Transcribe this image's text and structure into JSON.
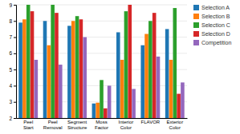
{
  "chart_data": {
    "type": "bar",
    "categories": [
      "Peel\nStart",
      "Peel\nRemoval",
      "Segment\nStructure",
      "Moss\nFactor",
      "Interior\nColor",
      "FLAVOR",
      "Exterior\nColor"
    ],
    "series": [
      {
        "name": "Selection A",
        "values": [
          7.9,
          8.0,
          7.7,
          2.9,
          7.3,
          6.5,
          7.5
        ]
      },
      {
        "name": "Selection B",
        "values": [
          8.1,
          6.5,
          8.0,
          2.95,
          5.6,
          7.2,
          5.6
        ]
      },
      {
        "name": "Selection C",
        "values": [
          9.0,
          9.0,
          8.3,
          4.35,
          8.6,
          8.0,
          8.8
        ]
      },
      {
        "name": "Selection D",
        "values": [
          8.6,
          8.5,
          8.1,
          2.6,
          9.0,
          8.5,
          3.5
        ]
      },
      {
        "name": "Competition",
        "values": [
          5.6,
          5.3,
          7.0,
          4.0,
          3.8,
          5.8,
          4.2
        ]
      }
    ],
    "ylim": [
      2,
      9
    ],
    "yticks": [
      2,
      3,
      4,
      5,
      6,
      7,
      8,
      9
    ],
    "grid": true,
    "legend": "right"
  }
}
